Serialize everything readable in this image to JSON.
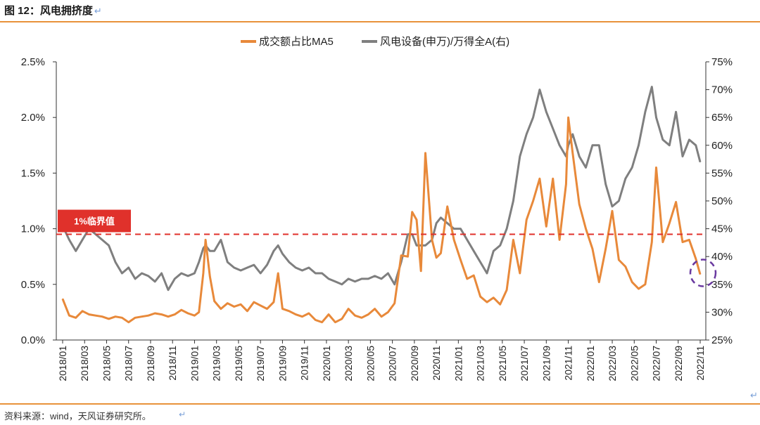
{
  "figure": {
    "title": "图 12：风电拥挤度",
    "return_mark": "↵",
    "source": "资料来源：wind，天风证券研究所。"
  },
  "chart_data": {
    "type": "line",
    "legend_position": "top-center",
    "grid": false,
    "left_axis": {
      "ylim": [
        0,
        0.025
      ],
      "ticks": [
        "0.0%",
        "0.5%",
        "1.0%",
        "1.5%",
        "2.0%",
        "2.5%"
      ]
    },
    "right_axis": {
      "ylim": [
        0.25,
        0.75
      ],
      "ticks": [
        "25%",
        "30%",
        "35%",
        "40%",
        "45%",
        "50%",
        "55%",
        "60%",
        "65%",
        "70%",
        "75%"
      ]
    },
    "x_labels": [
      "2018/01",
      "2018/03",
      "2018/05",
      "2018/07",
      "2018/09",
      "2018/11",
      "2019/01",
      "2019/03",
      "2019/05",
      "2019/07",
      "2019/09",
      "2019/11",
      "2020/01",
      "2020/03",
      "2020/05",
      "2020/07",
      "2020/09",
      "2020/11",
      "2021/01",
      "2021/03",
      "2021/05",
      "2021/07",
      "2021/09",
      "2021/11",
      "2022/01",
      "2022/03",
      "2022/05",
      "2022/07",
      "2022/09",
      "2022/11"
    ],
    "series": [
      {
        "name": "成交额占比MA5",
        "axis": "left",
        "color": "#e8893a",
        "x": [
          0,
          0.3,
          0.6,
          0.9,
          1.2,
          1.5,
          1.8,
          2.1,
          2.4,
          2.7,
          3.0,
          3.3,
          3.6,
          3.9,
          4.2,
          4.5,
          4.8,
          5.1,
          5.4,
          5.7,
          6.0,
          6.2,
          6.4,
          6.5,
          6.7,
          6.9,
          7.2,
          7.5,
          7.8,
          8.1,
          8.4,
          8.7,
          9.0,
          9.3,
          9.6,
          9.8,
          10.0,
          10.3,
          10.6,
          10.9,
          11.2,
          11.5,
          11.8,
          12.1,
          12.4,
          12.7,
          13.0,
          13.3,
          13.6,
          13.9,
          14.2,
          14.5,
          14.8,
          15.1,
          15.4,
          15.7,
          15.9,
          16.1,
          16.3,
          16.5,
          16.8,
          17.0,
          17.2,
          17.5,
          17.8,
          18.1,
          18.4,
          18.7,
          19.0,
          19.3,
          19.6,
          19.9,
          20.2,
          20.5,
          20.8,
          21.1,
          21.4,
          21.7,
          22.0,
          22.3,
          22.6,
          22.9,
          23.0,
          23.2,
          23.5,
          23.8,
          24.1,
          24.4,
          24.7,
          25.0,
          25.3,
          25.6,
          25.9,
          26.2,
          26.5,
          26.8,
          27.0,
          27.3,
          27.6,
          27.9,
          28.2,
          28.5,
          28.8,
          29.0
        ],
        "values": [
          0.0037,
          0.0022,
          0.002,
          0.0026,
          0.0023,
          0.0022,
          0.0021,
          0.0019,
          0.0021,
          0.002,
          0.0016,
          0.002,
          0.0021,
          0.0022,
          0.0024,
          0.0023,
          0.0021,
          0.0023,
          0.0027,
          0.0024,
          0.0022,
          0.0025,
          0.006,
          0.009,
          0.0057,
          0.0035,
          0.0028,
          0.0033,
          0.003,
          0.0032,
          0.0026,
          0.0034,
          0.0031,
          0.0028,
          0.0034,
          0.006,
          0.0028,
          0.0026,
          0.0023,
          0.0021,
          0.0024,
          0.0018,
          0.0016,
          0.0023,
          0.0016,
          0.0019,
          0.0028,
          0.0022,
          0.002,
          0.0023,
          0.0028,
          0.0021,
          0.0025,
          0.0033,
          0.0076,
          0.0075,
          0.0115,
          0.0108,
          0.0062,
          0.0168,
          0.009,
          0.0074,
          0.0078,
          0.012,
          0.009,
          0.0072,
          0.0055,
          0.0058,
          0.0039,
          0.0034,
          0.0038,
          0.0032,
          0.0045,
          0.009,
          0.006,
          0.0108,
          0.0125,
          0.0145,
          0.0102,
          0.0145,
          0.009,
          0.014,
          0.02,
          0.0168,
          0.0122,
          0.01,
          0.0082,
          0.0052,
          0.0082,
          0.0116,
          0.0072,
          0.0066,
          0.0052,
          0.0046,
          0.005,
          0.0088,
          0.0155,
          0.0088,
          0.0105,
          0.0124,
          0.0088,
          0.009,
          0.0073,
          0.0059
        ]
      },
      {
        "name": "风电设备(申万)/万得全A(右)",
        "axis": "right",
        "color": "#7f7f7f",
        "x": [
          0,
          0.3,
          0.6,
          0.9,
          1.2,
          1.5,
          1.8,
          2.1,
          2.4,
          2.7,
          3.0,
          3.3,
          3.6,
          3.9,
          4.2,
          4.5,
          4.8,
          5.1,
          5.4,
          5.7,
          6.0,
          6.2,
          6.4,
          6.5,
          6.7,
          6.9,
          7.2,
          7.5,
          7.8,
          8.1,
          8.4,
          8.7,
          9.0,
          9.3,
          9.6,
          9.8,
          10.0,
          10.3,
          10.6,
          10.9,
          11.2,
          11.5,
          11.8,
          12.1,
          12.4,
          12.7,
          13.0,
          13.3,
          13.6,
          13.9,
          14.2,
          14.5,
          14.8,
          15.1,
          15.4,
          15.7,
          15.9,
          16.1,
          16.3,
          16.5,
          16.8,
          17.0,
          17.2,
          17.5,
          17.8,
          18.1,
          18.4,
          18.7,
          19.0,
          19.3,
          19.6,
          19.9,
          20.2,
          20.5,
          20.8,
          21.1,
          21.4,
          21.7,
          22.0,
          22.3,
          22.6,
          22.9,
          23.0,
          23.2,
          23.5,
          23.8,
          24.1,
          24.4,
          24.7,
          25.0,
          25.3,
          25.6,
          25.9,
          26.2,
          26.5,
          26.8,
          27.0,
          27.3,
          27.6,
          27.9,
          28.2,
          28.5,
          28.8,
          29.0
        ],
        "values": [
          0.455,
          0.43,
          0.41,
          0.43,
          0.45,
          0.44,
          0.43,
          0.42,
          0.39,
          0.37,
          0.38,
          0.36,
          0.37,
          0.365,
          0.355,
          0.37,
          0.34,
          0.36,
          0.37,
          0.365,
          0.37,
          0.39,
          0.415,
          0.42,
          0.41,
          0.41,
          0.43,
          0.39,
          0.38,
          0.375,
          0.38,
          0.385,
          0.37,
          0.385,
          0.41,
          0.42,
          0.405,
          0.39,
          0.38,
          0.375,
          0.38,
          0.37,
          0.37,
          0.36,
          0.355,
          0.35,
          0.36,
          0.355,
          0.36,
          0.36,
          0.365,
          0.36,
          0.37,
          0.35,
          0.39,
          0.44,
          0.44,
          0.42,
          0.42,
          0.42,
          0.43,
          0.46,
          0.47,
          0.46,
          0.45,
          0.45,
          0.43,
          0.41,
          0.39,
          0.37,
          0.41,
          0.42,
          0.45,
          0.5,
          0.58,
          0.62,
          0.65,
          0.7,
          0.66,
          0.63,
          0.6,
          0.58,
          0.6,
          0.62,
          0.58,
          0.56,
          0.6,
          0.6,
          0.53,
          0.49,
          0.5,
          0.54,
          0.56,
          0.6,
          0.66,
          0.705,
          0.65,
          0.61,
          0.6,
          0.66,
          0.58,
          0.61,
          0.6,
          0.57
        ]
      }
    ],
    "annotations": {
      "threshold_label": "1%临界值",
      "threshold_value": 0.0095
    }
  }
}
